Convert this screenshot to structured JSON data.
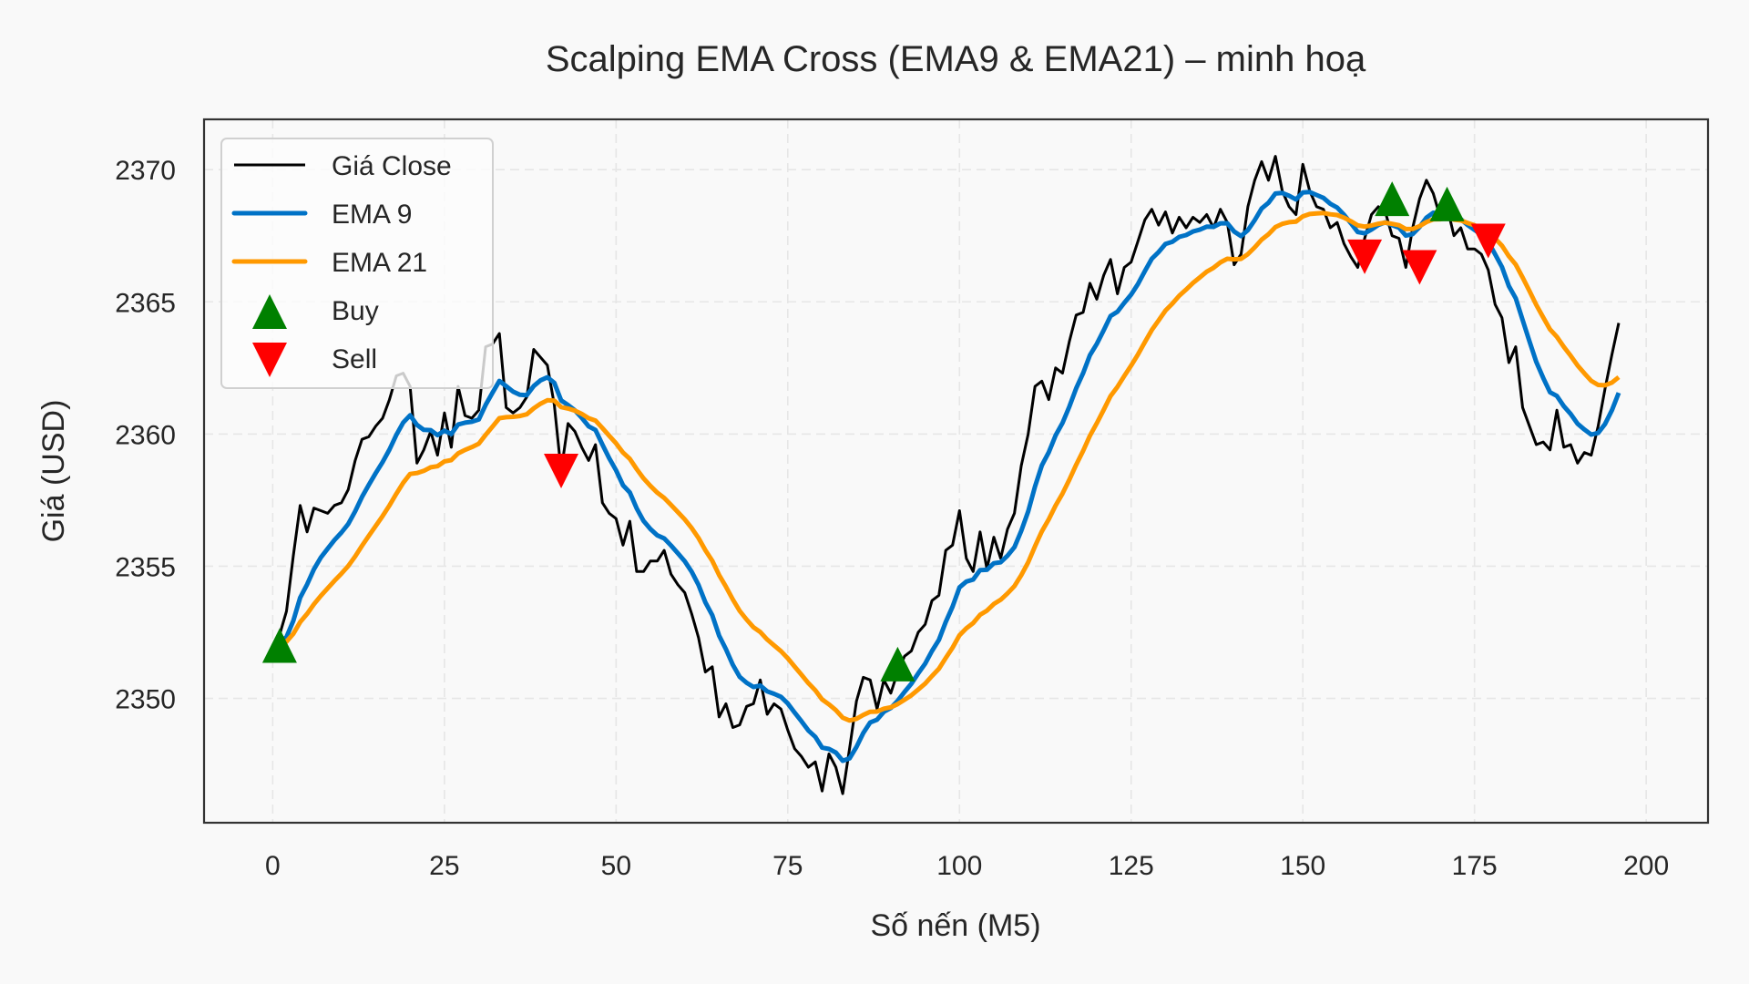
{
  "chart_data": {
    "type": "line",
    "title": "Scalping EMA Cross (EMA9 & EMA21) – minh hoạ",
    "xlabel": "Số nến (M5)",
    "ylabel": "Giá (USD)",
    "xlim": [
      -10,
      209
    ],
    "ylim": [
      2345.3,
      2371.9
    ],
    "xticks": [
      0,
      25,
      50,
      75,
      100,
      125,
      150,
      175,
      200
    ],
    "yticks": [
      2350,
      2355,
      2360,
      2365,
      2370
    ],
    "grid": true,
    "legend_position": "top-left",
    "series": [
      {
        "name": "Giá Close",
        "color": "#000000",
        "kind": "line",
        "values": [
          2352.0,
          2352.4,
          2353.3,
          2355.4,
          2357.3,
          2356.3,
          2357.2,
          2357.1,
          2357.0,
          2357.3,
          2357.4,
          2357.9,
          2359.0,
          2359.8,
          2359.9,
          2360.3,
          2360.6,
          2361.3,
          2362.2,
          2362.3,
          2361.8,
          2358.9,
          2359.4,
          2360.1,
          2359.2,
          2360.8,
          2359.5,
          2361.8,
          2360.7,
          2360.6,
          2360.9,
          2363.3,
          2363.4,
          2363.8,
          2361.0,
          2360.8,
          2361.0,
          2361.4,
          2363.2,
          2362.9,
          2362.6,
          2361.1,
          2358.6,
          2360.4,
          2360.1,
          2359.5,
          2359.0,
          2359.6,
          2357.4,
          2357.0,
          2356.8,
          2355.8,
          2356.7,
          2354.8,
          2354.8,
          2355.2,
          2355.2,
          2355.6,
          2354.7,
          2354.3,
          2354.0,
          2353.2,
          2352.3,
          2351.0,
          2351.2,
          2349.3,
          2349.8,
          2348.9,
          2349.0,
          2349.7,
          2349.8,
          2350.7,
          2349.4,
          2349.8,
          2349.6,
          2348.8,
          2348.1,
          2347.8,
          2347.4,
          2347.6,
          2346.5,
          2347.9,
          2347.4,
          2346.4,
          2348.1,
          2349.9,
          2350.8,
          2350.7,
          2349.6,
          2350.7,
          2350.2,
          2351.0,
          2351.6,
          2351.8,
          2352.5,
          2352.8,
          2353.7,
          2353.9,
          2355.6,
          2355.8,
          2357.1,
          2355.3,
          2354.8,
          2356.3,
          2354.9,
          2356.1,
          2355.3,
          2356.4,
          2357.0,
          2358.8,
          2360.0,
          2361.8,
          2362.0,
          2361.3,
          2362.5,
          2362.3,
          2363.5,
          2364.5,
          2364.6,
          2365.7,
          2365.1,
          2366.0,
          2366.6,
          2365.3,
          2366.3,
          2366.5,
          2367.3,
          2368.1,
          2368.5,
          2367.9,
          2368.4,
          2367.6,
          2368.2,
          2367.8,
          2368.2,
          2368.0,
          2368.3,
          2367.8,
          2368.5,
          2368.0,
          2366.4,
          2366.8,
          2368.6,
          2369.6,
          2370.3,
          2369.6,
          2370.5,
          2369.2,
          2368.6,
          2368.3,
          2370.2,
          2369.2,
          2368.6,
          2368.5,
          2367.8,
          2368.0,
          2367.2,
          2366.7,
          2366.3,
          2367.4,
          2368.3,
          2368.6,
          2368.4,
          2367.5,
          2367.4,
          2366.3,
          2367.8,
          2368.9,
          2369.6,
          2369.1,
          2368.2,
          2368.6,
          2367.5,
          2367.8,
          2367.0,
          2367.0,
          2366.8,
          2366.2,
          2364.9,
          2364.4,
          2362.7,
          2363.3,
          2361.0,
          2360.3,
          2359.6,
          2359.7,
          2359.4,
          2360.9,
          2359.5,
          2359.6,
          2358.9,
          2359.3,
          2359.2,
          2360.3,
          2361.7,
          2363.0,
          2364.2
        ],
        "x_start": 0
      },
      {
        "name": "EMA 9",
        "color": "#0072c6",
        "kind": "ema",
        "span": 9,
        "of": "Giá Close"
      },
      {
        "name": "EMA 21",
        "color": "#ff9900",
        "kind": "ema",
        "span": 21,
        "of": "Giá Close"
      },
      {
        "name": "Buy",
        "color": "#008000",
        "kind": "marker",
        "marker": "triangle-up",
        "points": [
          [
            1,
            2352.0
          ],
          [
            91,
            2351.3
          ],
          [
            163,
            2368.9
          ],
          [
            171,
            2368.7
          ]
        ]
      },
      {
        "name": "Sell",
        "color": "#ff0000",
        "kind": "marker",
        "marker": "triangle-down",
        "points": [
          [
            42,
            2358.6
          ],
          [
            159,
            2366.7
          ],
          [
            167,
            2366.3
          ],
          [
            177,
            2367.3
          ]
        ]
      }
    ]
  }
}
